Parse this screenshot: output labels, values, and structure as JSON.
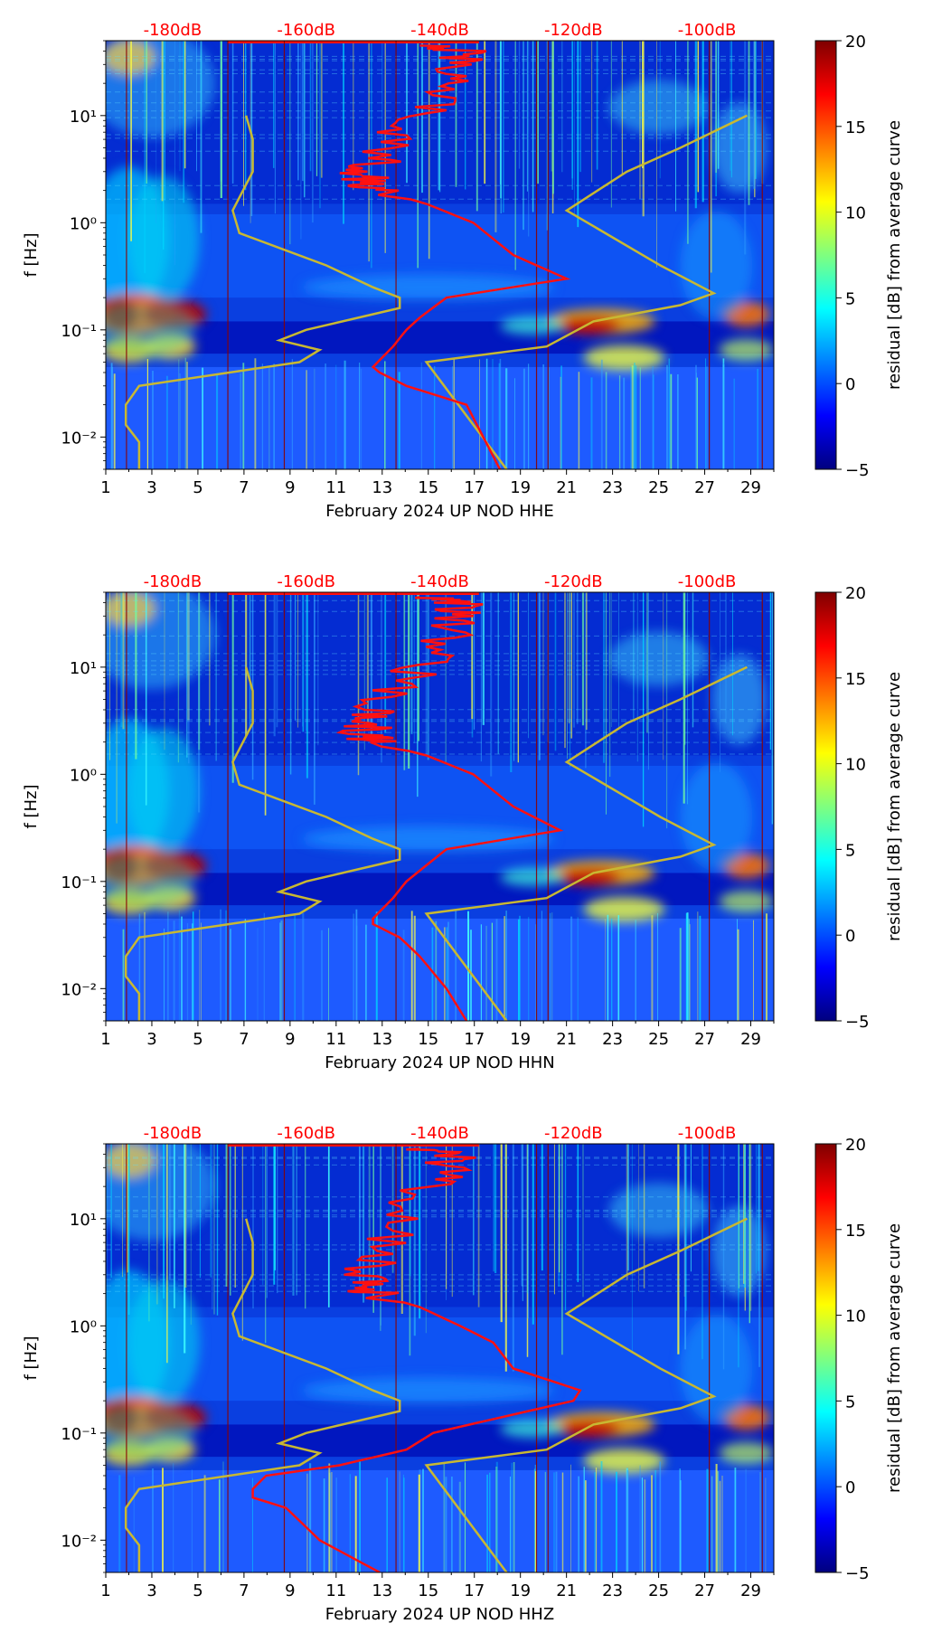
{
  "colors": {
    "db_labels": "#ff0000",
    "nlnm_nhnm": "#c8b832",
    "median_curve": "#ff1010",
    "day_lines": "#8b0000",
    "colormap": [
      "#00007f",
      "#0000ff",
      "#007fff",
      "#00ffff",
      "#7fff7f",
      "#ffff00",
      "#ff7f00",
      "#ff0000",
      "#7f0000"
    ]
  },
  "chart_data": [
    {
      "type": "heatmap",
      "component": "HHE",
      "xlabel": "February 2024 UP NOD  HHE",
      "ylabel": "f [Hz]",
      "x_ticks": [
        "1",
        "3",
        "5",
        "7",
        "9",
        "11",
        "13",
        "15",
        "17",
        "19",
        "21",
        "23",
        "25",
        "27",
        "29"
      ],
      "xlim": [
        1,
        30
      ],
      "y_ticks": [
        "10⁻²",
        "10⁻¹",
        "10⁰",
        "10¹"
      ],
      "ylim_hz": [
        0.005,
        50
      ],
      "db_axis": {
        "labels": [
          "-180dB",
          "-160dB",
          "-140dB",
          "-120dB",
          "-100dB"
        ],
        "values": [
          -180,
          -160,
          -140,
          -120,
          -100
        ],
        "range_db": [
          -190,
          -90
        ]
      },
      "colorbar": {
        "label": "residual [dB] from average curve",
        "ticks": [
          "−5",
          "0",
          "5",
          "10",
          "15",
          "20"
        ],
        "range": [
          -5,
          20
        ],
        "cmap": "jet"
      },
      "noise_models": {
        "nlnm": [
          [
            0.005,
            -185
          ],
          [
            0.009,
            -185
          ],
          [
            0.013,
            -187
          ],
          [
            0.02,
            -187
          ],
          [
            0.03,
            -185
          ],
          [
            0.05,
            -161
          ],
          [
            0.065,
            -158
          ],
          [
            0.08,
            -164
          ],
          [
            0.1,
            -160
          ],
          [
            0.16,
            -146
          ],
          [
            0.2,
            -146
          ],
          [
            0.25,
            -150
          ],
          [
            0.4,
            -157
          ],
          [
            0.8,
            -170
          ],
          [
            1.3,
            -171
          ],
          [
            3,
            -168
          ],
          [
            6,
            -168
          ],
          [
            10,
            -169
          ]
        ],
        "nhnm": [
          [
            0.005,
            -130
          ],
          [
            0.05,
            -142
          ],
          [
            0.07,
            -124
          ],
          [
            0.12,
            -117
          ],
          [
            0.17,
            -104
          ],
          [
            0.22,
            -99
          ],
          [
            0.4,
            -107
          ],
          [
            1.3,
            -121
          ],
          [
            3,
            -112
          ],
          [
            5,
            -104
          ],
          [
            10,
            -94
          ]
        ]
      },
      "median_curve": [
        [
          0.005,
          -131
        ],
        [
          0.02,
          -136
        ],
        [
          0.03,
          -145
        ],
        [
          0.04,
          -149
        ],
        [
          0.045,
          -150
        ],
        [
          0.07,
          -147
        ],
        [
          0.1,
          -145
        ],
        [
          0.13,
          -143
        ],
        [
          0.2,
          -139
        ],
        [
          0.3,
          -121
        ],
        [
          0.5,
          -129
        ],
        [
          1,
          -135
        ],
        [
          1.5,
          -142
        ],
        [
          2,
          -149
        ],
        [
          2.3,
          -151
        ],
        [
          3,
          -151
        ],
        [
          4,
          -149
        ],
        [
          7,
          -146
        ],
        [
          12,
          -142
        ],
        [
          20,
          -139
        ],
        [
          30,
          -137
        ],
        [
          40,
          -136
        ],
        [
          45,
          -143
        ]
      ]
    },
    {
      "type": "heatmap",
      "component": "HHN",
      "xlabel": "February 2024 UP NOD  HHN",
      "ylabel": "f [Hz]",
      "x_ticks": [
        "1",
        "3",
        "5",
        "7",
        "9",
        "11",
        "13",
        "15",
        "17",
        "19",
        "21",
        "23",
        "25",
        "27",
        "29"
      ],
      "xlim": [
        1,
        30
      ],
      "y_ticks": [
        "10⁻²",
        "10⁻¹",
        "10⁰",
        "10¹"
      ],
      "ylim_hz": [
        0.005,
        50
      ],
      "db_axis": {
        "labels": [
          "-180dB",
          "-160dB",
          "-140dB",
          "-120dB",
          "-100dB"
        ],
        "values": [
          -180,
          -160,
          -140,
          -120,
          -100
        ],
        "range_db": [
          -190,
          -90
        ]
      },
      "colorbar": {
        "label": "residual [dB] from average curve",
        "ticks": [
          "−5",
          "0",
          "5",
          "10",
          "15",
          "20"
        ],
        "range": [
          -5,
          20
        ],
        "cmap": "jet"
      },
      "noise_models": {
        "nlnm": [
          [
            0.005,
            -185
          ],
          [
            0.009,
            -185
          ],
          [
            0.013,
            -187
          ],
          [
            0.02,
            -187
          ],
          [
            0.03,
            -185
          ],
          [
            0.05,
            -161
          ],
          [
            0.065,
            -158
          ],
          [
            0.08,
            -164
          ],
          [
            0.1,
            -160
          ],
          [
            0.16,
            -146
          ],
          [
            0.2,
            -146
          ],
          [
            0.25,
            -150
          ],
          [
            0.4,
            -157
          ],
          [
            0.8,
            -170
          ],
          [
            1.3,
            -171
          ],
          [
            3,
            -168
          ],
          [
            6,
            -168
          ],
          [
            10,
            -169
          ]
        ],
        "nhnm": [
          [
            0.005,
            -130
          ],
          [
            0.05,
            -142
          ],
          [
            0.07,
            -124
          ],
          [
            0.12,
            -117
          ],
          [
            0.17,
            -104
          ],
          [
            0.22,
            -99
          ],
          [
            0.4,
            -107
          ],
          [
            1.3,
            -121
          ],
          [
            3,
            -112
          ],
          [
            5,
            -104
          ],
          [
            10,
            -94
          ]
        ]
      },
      "median_curve": [
        [
          0.005,
          -136
        ],
        [
          0.01,
          -139
        ],
        [
          0.02,
          -143
        ],
        [
          0.03,
          -146
        ],
        [
          0.04,
          -150
        ],
        [
          0.045,
          -150
        ],
        [
          0.07,
          -147
        ],
        [
          0.1,
          -145
        ],
        [
          0.2,
          -139
        ],
        [
          0.3,
          -122
        ],
        [
          0.5,
          -129
        ],
        [
          1,
          -135
        ],
        [
          1.5,
          -142
        ],
        [
          2,
          -150
        ],
        [
          2.3,
          -151
        ],
        [
          3,
          -151
        ],
        [
          4,
          -150
        ],
        [
          7,
          -146
        ],
        [
          12,
          -142
        ],
        [
          20,
          -139
        ],
        [
          30,
          -137
        ],
        [
          40,
          -137
        ],
        [
          45,
          -143
        ]
      ]
    },
    {
      "type": "heatmap",
      "component": "HHZ",
      "xlabel": "February 2024 UP NOD  HHZ",
      "ylabel": "f [Hz]",
      "x_ticks": [
        "1",
        "3",
        "5",
        "7",
        "9",
        "11",
        "13",
        "15",
        "17",
        "19",
        "21",
        "23",
        "25",
        "27",
        "29"
      ],
      "xlim": [
        1,
        30
      ],
      "y_ticks": [
        "10⁻²",
        "10⁻¹",
        "10⁰",
        "10¹"
      ],
      "ylim_hz": [
        0.005,
        50
      ],
      "db_axis": {
        "labels": [
          "-180dB",
          "-160dB",
          "-140dB",
          "-120dB",
          "-100dB"
        ],
        "values": [
          -180,
          -160,
          -140,
          -120,
          -100
        ],
        "range_db": [
          -190,
          -90
        ]
      },
      "colorbar": {
        "label": "residual [dB] from average curve",
        "ticks": [
          "−5",
          "0",
          "5",
          "10",
          "15",
          "20"
        ],
        "range": [
          -5,
          20
        ],
        "cmap": "jet"
      },
      "noise_models": {
        "nlnm": [
          [
            0.005,
            -185
          ],
          [
            0.009,
            -185
          ],
          [
            0.013,
            -187
          ],
          [
            0.02,
            -187
          ],
          [
            0.03,
            -185
          ],
          [
            0.05,
            -161
          ],
          [
            0.065,
            -158
          ],
          [
            0.08,
            -164
          ],
          [
            0.1,
            -160
          ],
          [
            0.16,
            -146
          ],
          [
            0.2,
            -146
          ],
          [
            0.25,
            -150
          ],
          [
            0.4,
            -157
          ],
          [
            0.8,
            -170
          ],
          [
            1.3,
            -171
          ],
          [
            3,
            -168
          ],
          [
            6,
            -168
          ],
          [
            10,
            -169
          ]
        ],
        "nhnm": [
          [
            0.005,
            -130
          ],
          [
            0.05,
            -142
          ],
          [
            0.07,
            -124
          ],
          [
            0.12,
            -117
          ],
          [
            0.17,
            -104
          ],
          [
            0.22,
            -99
          ],
          [
            0.4,
            -107
          ],
          [
            1.3,
            -121
          ],
          [
            3,
            -112
          ],
          [
            5,
            -104
          ],
          [
            10,
            -94
          ]
        ]
      },
      "median_curve": [
        [
          0.005,
          -149
        ],
        [
          0.01,
          -158
        ],
        [
          0.02,
          -163
        ],
        [
          0.025,
          -168
        ],
        [
          0.03,
          -168
        ],
        [
          0.04,
          -166
        ],
        [
          0.05,
          -155
        ],
        [
          0.07,
          -145
        ],
        [
          0.1,
          -141
        ],
        [
          0.2,
          -120
        ],
        [
          0.25,
          -119
        ],
        [
          0.4,
          -129
        ],
        [
          0.7,
          -132
        ],
        [
          1,
          -137
        ],
        [
          1.5,
          -143
        ],
        [
          2,
          -150
        ],
        [
          2.3,
          -151
        ],
        [
          3,
          -151
        ],
        [
          5,
          -149
        ],
        [
          10,
          -146
        ],
        [
          20,
          -142
        ],
        [
          30,
          -139
        ],
        [
          40,
          -137
        ],
        [
          45,
          -143
        ]
      ]
    }
  ]
}
